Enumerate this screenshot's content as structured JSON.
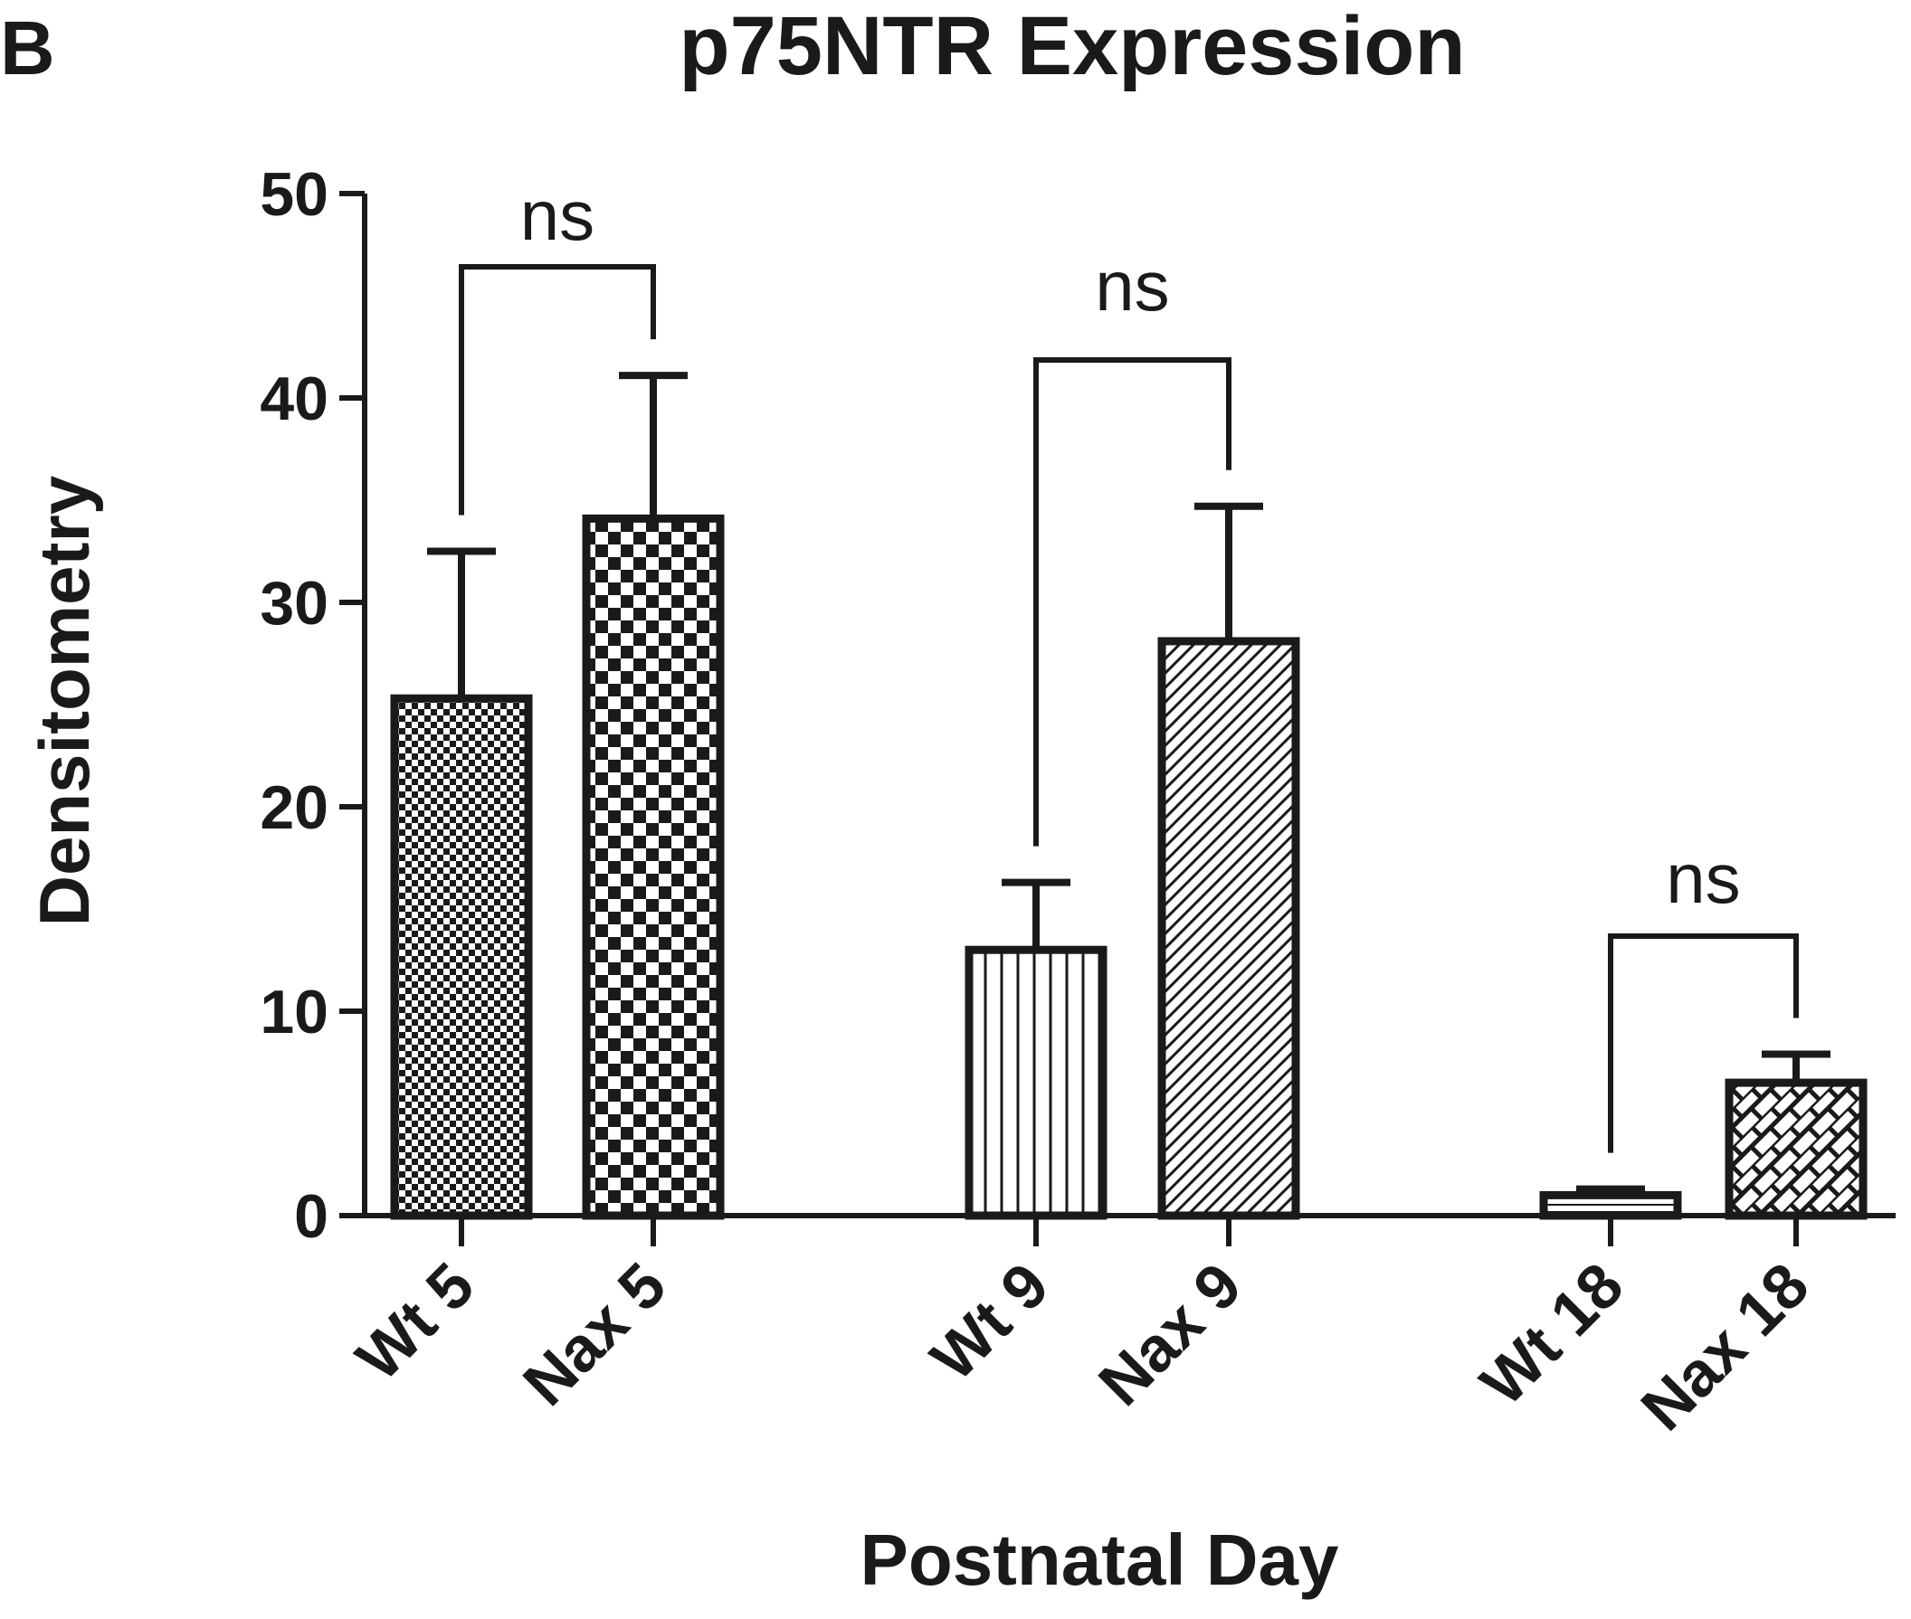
{
  "panel_label": "B",
  "chart_data": {
    "type": "bar",
    "title": "p75NTR Expression",
    "xlabel": "Postnatal Day",
    "ylabel": "Densitometry",
    "ylim": [
      0,
      50
    ],
    "yticks": [
      "0",
      "10",
      "20",
      "30",
      "40",
      "50"
    ],
    "categories": [
      "Wt 5",
      "Nax 5",
      "Wt 9",
      "Nax 9",
      "Wt 18",
      "Nax 18"
    ],
    "values": [
      25.3,
      34.1,
      13.0,
      28.1,
      1.0,
      6.5
    ],
    "errors": [
      7.2,
      7.0,
      3.3,
      6.6,
      0.3,
      1.4
    ],
    "patterns": [
      "fine-checker",
      "checker",
      "vertical-stripes",
      "diagonal-stripes",
      "horizontal-stripes",
      "brick"
    ],
    "grid": false,
    "legend": "none",
    "comparisons": [
      {
        "pair": [
          "Wt 5",
          "Nax 5"
        ],
        "label": "ns"
      },
      {
        "pair": [
          "Wt 9",
          "Nax 9"
        ],
        "label": "ns"
      },
      {
        "pair": [
          "Wt 18",
          "Nax 18"
        ],
        "label": "ns"
      }
    ]
  }
}
